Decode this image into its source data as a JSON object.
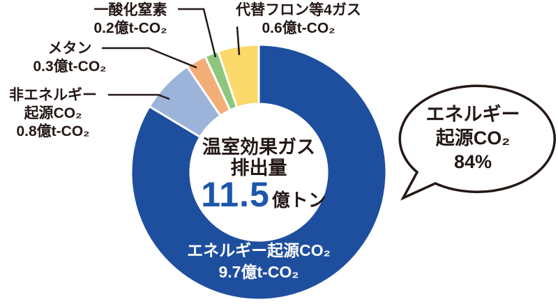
{
  "chart_data": {
    "type": "donut",
    "title": "温室効果ガス排出量",
    "center_label": {
      "line1": "温室効果ガス",
      "line2": "排出量",
      "total_value": "11.5",
      "total_unit": "億トン"
    },
    "unit": "億t-CO₂",
    "total": 11.5,
    "legend_position": "callout-labels",
    "segments": [
      {
        "id": "energy-co2",
        "label": "エネルギー起源CO₂",
        "value": 9.7,
        "value_label": "9.7億t-CO₂",
        "color": "#1e4f9f",
        "share_label": "84%"
      },
      {
        "id": "non-energy-co2",
        "label": "非エネルギー起源CO₂",
        "value": 0.8,
        "value_label": "0.8億t-CO₂",
        "color": "#9cb3da"
      },
      {
        "id": "methane",
        "label": "メタン",
        "value": 0.3,
        "value_label": "0.3億t-CO₂",
        "color": "#f3ae77"
      },
      {
        "id": "nitrous-oxide",
        "label": "一酸化窒素",
        "value": 0.2,
        "value_label": "0.2億t-CO₂",
        "color": "#8dc77e"
      },
      {
        "id": "hfc-gases",
        "label": "代替フロン等4ガス",
        "value": 0.6,
        "value_label": "0.6億t-CO₂",
        "color": "#fbd96a"
      }
    ]
  },
  "annotations": {
    "nitrous_oxide": {
      "line1": "一酸化窒素",
      "line2": "0.2億t-CO₂"
    },
    "hfc": {
      "line1": "代替フロン等4ガス",
      "line2": "0.6億t-CO₂"
    },
    "methane": {
      "line1": "メタン",
      "line2": "0.3億t-CO₂"
    },
    "non_energy": {
      "line1": "非エネルギー",
      "line2": "起源CO₂",
      "line3": "0.8億t-CO₂"
    },
    "energy_inner": {
      "line1": "エネルギー起源CO₂",
      "line2": "9.7億t-CO₂"
    },
    "center": {
      "line1": "温室効果ガス",
      "line2": "排出量",
      "value": "11.5",
      "unit": "億トン"
    },
    "callout": {
      "line1": "エネルギー",
      "line2": "起源CO₂",
      "line3": "84%"
    }
  },
  "colors": {
    "text": "#231815",
    "value_blue": "#1c57ad",
    "background": "#ffffff",
    "segment_gap": "#ffffff",
    "callout_outline": "#231815"
  }
}
